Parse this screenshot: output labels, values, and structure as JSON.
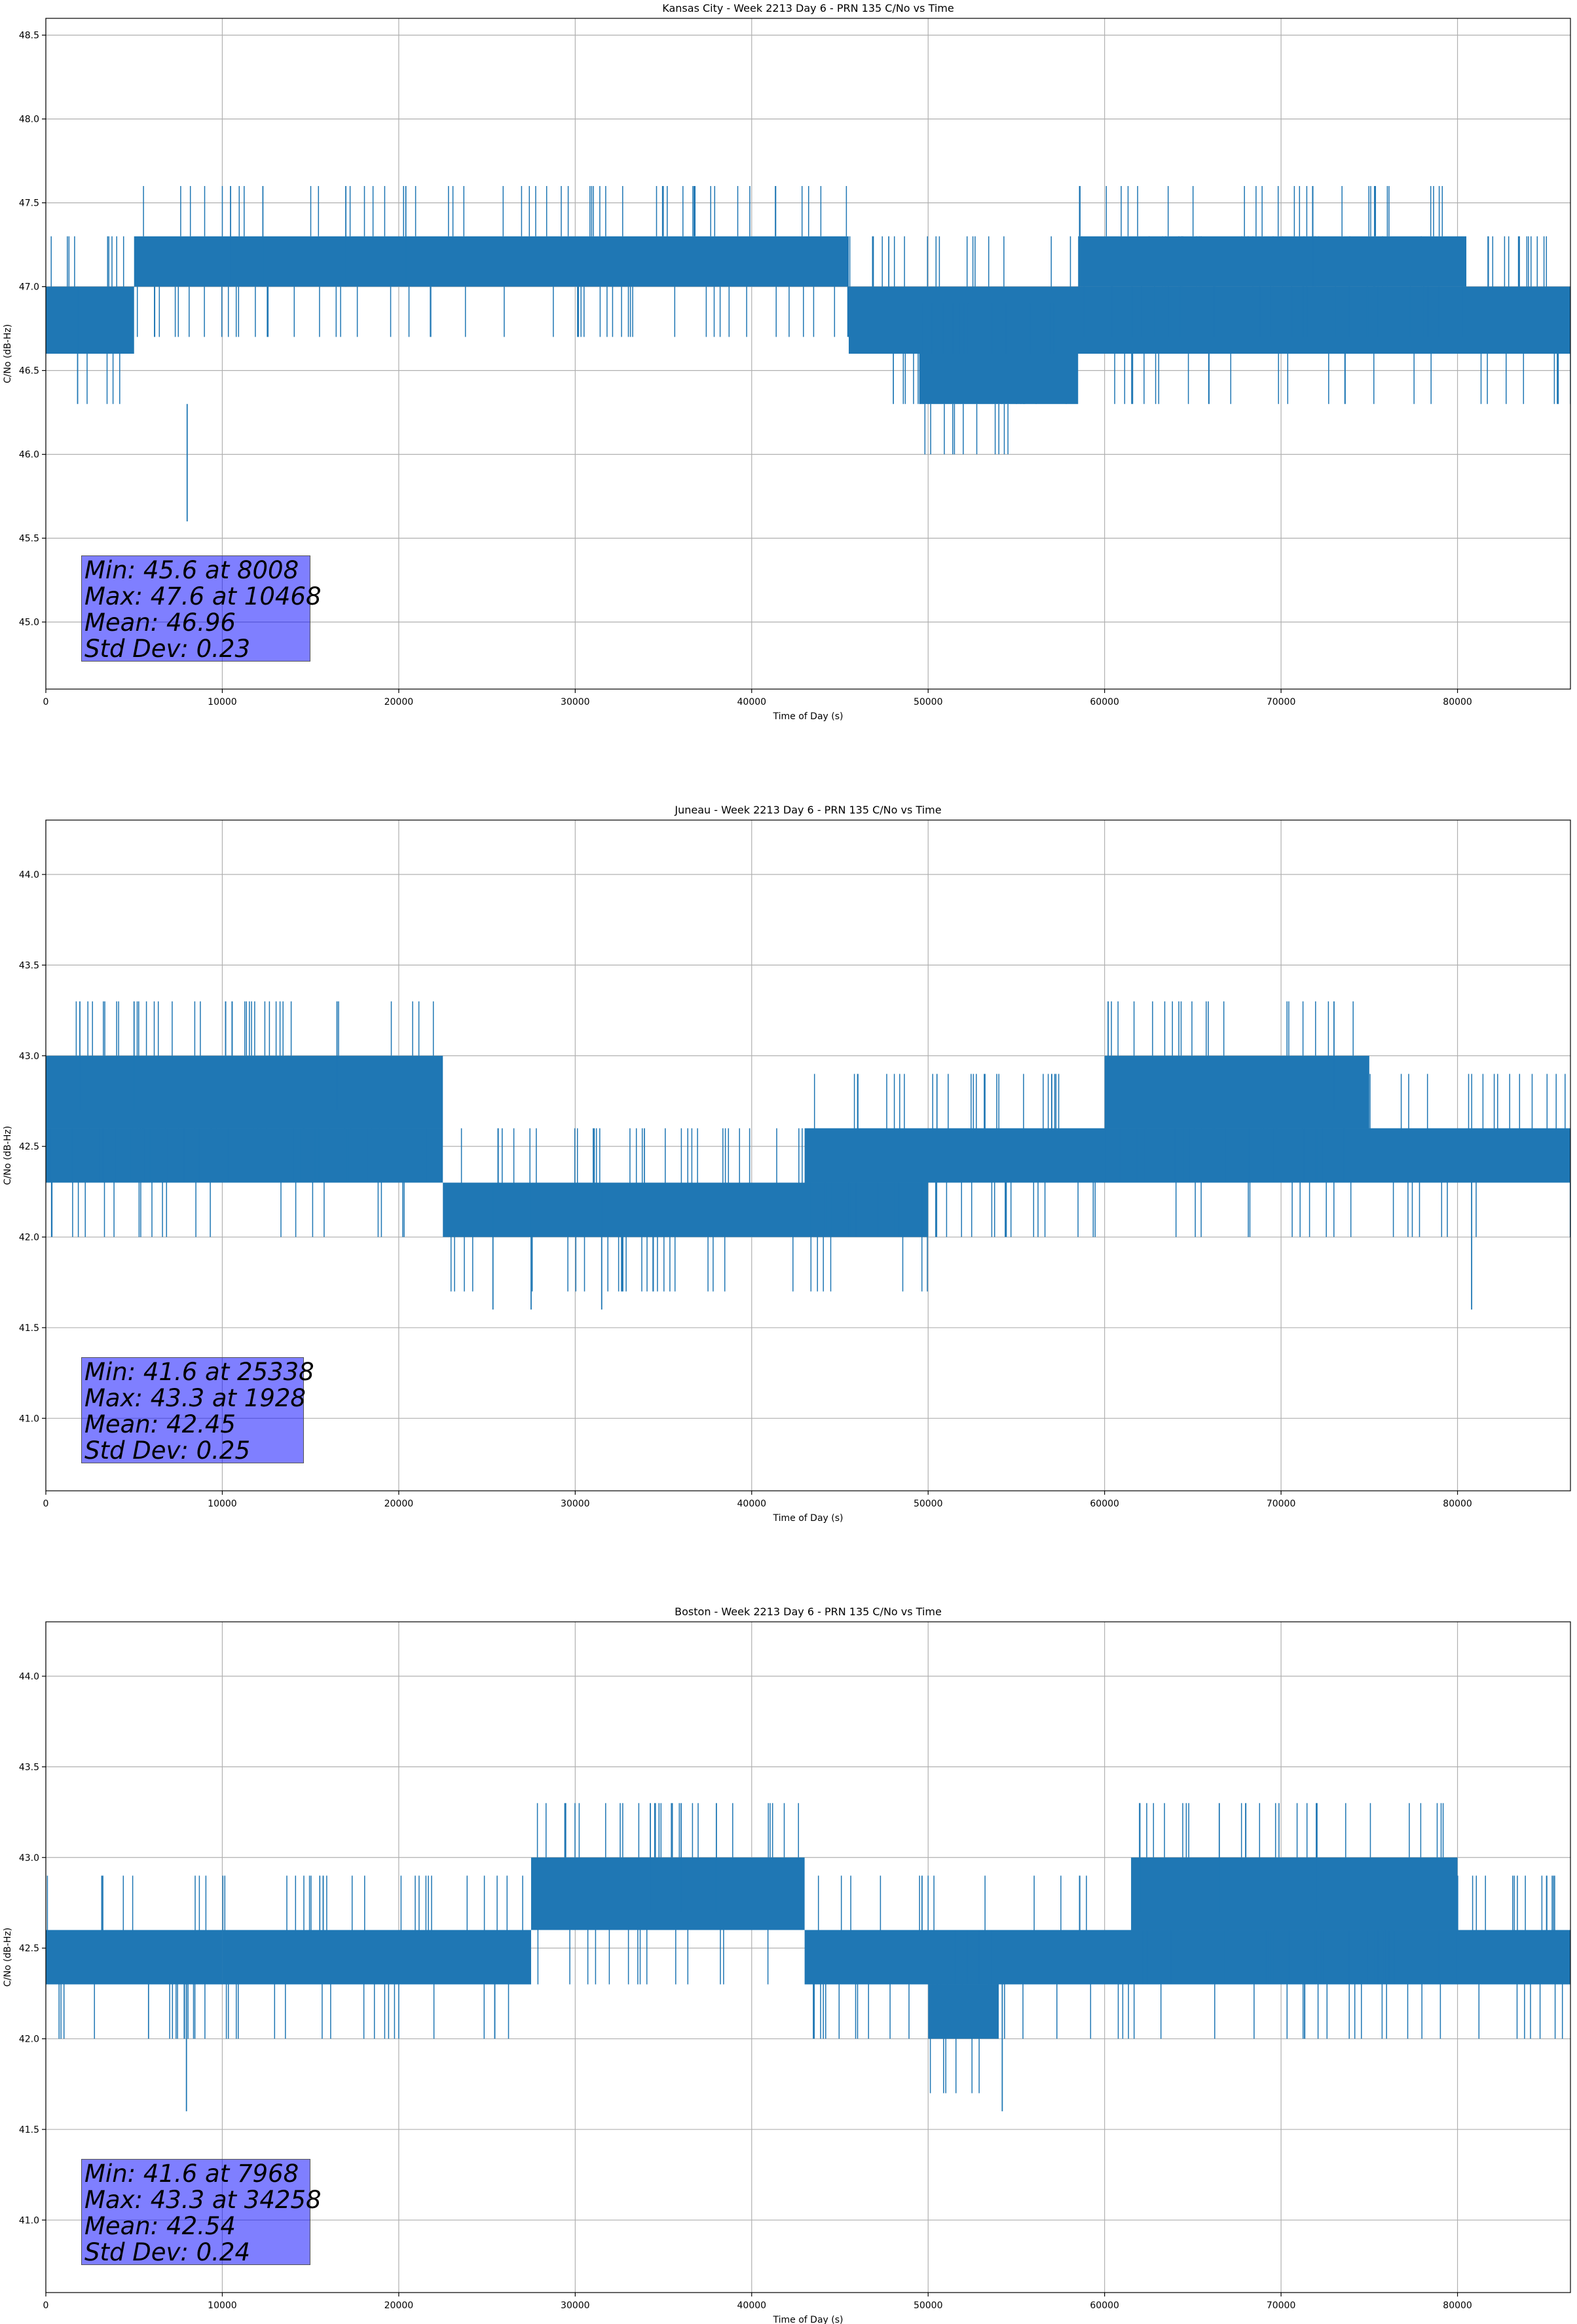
{
  "colors": {
    "line": "#1f77b4",
    "grid": "#b0b0b0",
    "stats_box": "#0000ff"
  },
  "chart_data": [
    {
      "type": "line",
      "title": "Kansas City - Week 2213 Day 6 - PRN 135 C/No vs Time",
      "xlabel": "Time of Day (s)",
      "ylabel": "C/No (dB-Hz)",
      "xlim": [
        0,
        86400
      ],
      "ylim": [
        44.6,
        48.6
      ],
      "xticks": [
        0,
        10000,
        20000,
        30000,
        40000,
        50000,
        60000,
        70000,
        80000
      ],
      "yticks": [
        45.0,
        45.5,
        46.0,
        46.5,
        47.0,
        47.5,
        48.0,
        48.5
      ],
      "quantization_step": 0.3,
      "segments": [
        {
          "x": [
            0,
            5000
          ],
          "levels": [
            46.6,
            47.0
          ]
        },
        {
          "x": [
            5000,
            45500
          ],
          "levels": [
            47.0,
            47.3
          ]
        },
        {
          "x": [
            45500,
            86400
          ],
          "levels": [
            46.6,
            47.0
          ]
        },
        {
          "x": [
            49500,
            58500
          ],
          "levels": [
            46.3,
            46.6
          ]
        },
        {
          "x": [
            58500,
            80500
          ],
          "levels": [
            47.0,
            47.3
          ]
        }
      ],
      "extremes": [
        {
          "x": 8008,
          "y": 45.6
        },
        {
          "x": 10468,
          "y": 47.6
        },
        {
          "x": 12300,
          "y": 47.6
        },
        {
          "x": 17000,
          "y": 47.6
        },
        {
          "x": 20400,
          "y": 47.6
        },
        {
          "x": 71800,
          "y": 47.6
        },
        {
          "x": 1800,
          "y": 46.3
        }
      ],
      "stats": {
        "min": "Min: 45.6 at 8008",
        "max": "Max: 47.6 at 10468",
        "mean": "Mean: 46.96",
        "std": "Std Dev: 0.23"
      }
    },
    {
      "type": "line",
      "title": "Juneau - Week 2213 Day 6 - PRN 135 C/No vs Time",
      "xlabel": "Time of Day (s)",
      "ylabel": "C/No (dB-Hz)",
      "xlim": [
        0,
        86400
      ],
      "ylim": [
        40.6,
        44.3
      ],
      "xticks": [
        0,
        10000,
        20000,
        30000,
        40000,
        50000,
        60000,
        70000,
        80000
      ],
      "yticks": [
        41.0,
        41.5,
        42.0,
        42.5,
        43.0,
        43.5,
        44.0
      ],
      "quantization_step": 0.3,
      "segments": [
        {
          "x": [
            0,
            22500
          ],
          "levels": [
            42.3,
            42.6
          ]
        },
        {
          "x": [
            0,
            22500
          ],
          "levels": [
            42.6,
            43.0
          ]
        },
        {
          "x": [
            22500,
            50000
          ],
          "levels": [
            42.0,
            42.3
          ]
        },
        {
          "x": [
            43000,
            86400
          ],
          "levels": [
            42.3,
            42.6
          ]
        },
        {
          "x": [
            60000,
            75000
          ],
          "levels": [
            42.6,
            43.0
          ]
        }
      ],
      "extremes": [
        {
          "x": 1928,
          "y": 43.3
        },
        {
          "x": 5000,
          "y": 43.3
        },
        {
          "x": 16500,
          "y": 43.3
        },
        {
          "x": 60200,
          "y": 43.3
        },
        {
          "x": 73000,
          "y": 43.3
        },
        {
          "x": 25338,
          "y": 41.6
        },
        {
          "x": 27500,
          "y": 41.6
        },
        {
          "x": 31500,
          "y": 41.6
        },
        {
          "x": 80800,
          "y": 41.6
        }
      ],
      "stats": {
        "min": "Min: 41.6 at 25338",
        "max": "Max: 43.3 at 1928",
        "mean": "Mean: 42.45",
        "std": "Std Dev: 0.25"
      }
    },
    {
      "type": "line",
      "title": "Boston - Week 2213 Day 6 - PRN 135 C/No vs Time",
      "xlabel": "Time of Day (s)",
      "ylabel": "C/No (dB-Hz)",
      "xlim": [
        0,
        86400
      ],
      "ylim": [
        40.6,
        44.3
      ],
      "xticks": [
        0,
        10000,
        20000,
        30000,
        40000,
        50000,
        60000,
        70000,
        80000
      ],
      "yticks": [
        41.0,
        41.5,
        42.0,
        42.5,
        43.0,
        43.5,
        44.0
      ],
      "quantization_step": 0.3,
      "segments": [
        {
          "x": [
            0,
            10000
          ],
          "levels": [
            42.3,
            42.6
          ]
        },
        {
          "x": [
            10000,
            27500
          ],
          "levels": [
            42.3,
            42.6
          ]
        },
        {
          "x": [
            27500,
            43000
          ],
          "levels": [
            42.6,
            43.0
          ]
        },
        {
          "x": [
            43000,
            54000
          ],
          "levels": [
            42.3,
            42.6
          ]
        },
        {
          "x": [
            50000,
            54000
          ],
          "levels": [
            42.0,
            42.3
          ]
        },
        {
          "x": [
            54000,
            86400
          ],
          "levels": [
            42.3,
            42.6
          ]
        },
        {
          "x": [
            61500,
            80000
          ],
          "levels": [
            42.6,
            43.0
          ]
        }
      ],
      "extremes": [
        {
          "x": 7968,
          "y": 41.6
        },
        {
          "x": 54200,
          "y": 41.6
        },
        {
          "x": 34258,
          "y": 43.3
        },
        {
          "x": 36000,
          "y": 43.3
        },
        {
          "x": 38000,
          "y": 43.3
        },
        {
          "x": 62000,
          "y": 43.3
        },
        {
          "x": 66500,
          "y": 43.3
        },
        {
          "x": 72000,
          "y": 43.3
        }
      ],
      "stats": {
        "min": "Min: 41.6 at 7968",
        "max": "Max: 43.3 at 34258",
        "mean": "Mean: 42.54",
        "std": "Std Dev: 0.24"
      }
    }
  ]
}
